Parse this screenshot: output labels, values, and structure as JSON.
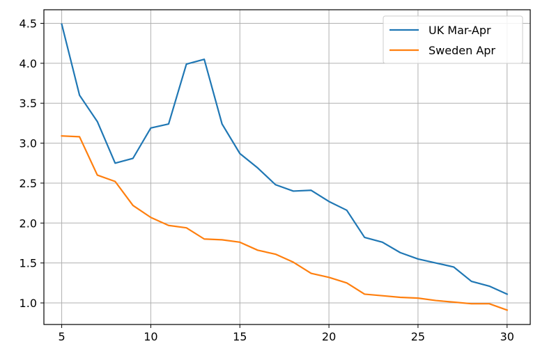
{
  "chart_data": {
    "type": "line",
    "title": "",
    "xlabel": "",
    "ylabel": "",
    "xlim": [
      4,
      31.3
    ],
    "ylim": [
      0.73,
      4.67
    ],
    "xticks": [
      5,
      10,
      15,
      20,
      25,
      30
    ],
    "yticks": [
      1.0,
      1.5,
      2.0,
      2.5,
      3.0,
      3.5,
      4.0,
      4.5
    ],
    "xtick_labels": [
      "5",
      "10",
      "15",
      "20",
      "25",
      "30"
    ],
    "ytick_labels": [
      "1.0",
      "1.5",
      "2.0",
      "2.5",
      "3.0",
      "3.5",
      "4.0",
      "4.5"
    ],
    "grid": true,
    "legend_position": "top-right",
    "x": [
      5,
      6,
      7,
      8,
      9,
      10,
      11,
      12,
      13,
      14,
      15,
      16,
      17,
      18,
      19,
      20,
      21,
      22,
      23,
      24,
      25,
      26,
      27,
      28,
      29,
      30
    ],
    "series": [
      {
        "name": "UK Mar-Apr",
        "color": "#1f77b4",
        "values": [
          4.49,
          3.6,
          3.27,
          2.75,
          2.81,
          3.19,
          3.24,
          3.99,
          4.05,
          3.24,
          2.87,
          2.69,
          2.48,
          2.4,
          2.41,
          2.27,
          2.16,
          1.82,
          1.76,
          1.63,
          1.55,
          1.5,
          1.45,
          1.27,
          1.21,
          1.11
        ]
      },
      {
        "name": "Sweden Apr",
        "color": "#ff7f0e",
        "values": [
          3.09,
          3.08,
          2.6,
          2.52,
          2.22,
          2.07,
          1.97,
          1.94,
          1.8,
          1.79,
          1.76,
          1.66,
          1.61,
          1.51,
          1.37,
          1.32,
          1.25,
          1.11,
          1.09,
          1.07,
          1.06,
          1.03,
          1.01,
          0.99,
          0.99,
          0.91
        ]
      }
    ]
  }
}
